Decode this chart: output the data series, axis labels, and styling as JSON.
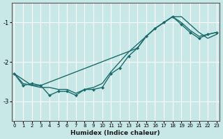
{
  "xlabel": "Humidex (Indice chaleur)",
  "ylabel": "",
  "background_color": "#c8e8e8",
  "grid_color": "#ffffff",
  "line_color": "#1a6b6b",
  "xlim": [
    0,
    23
  ],
  "ylim": [
    -3.5,
    -0.5
  ],
  "yticks": [
    -3,
    -2,
    -1
  ],
  "xticks": [
    0,
    1,
    2,
    3,
    4,
    5,
    6,
    7,
    8,
    9,
    10,
    11,
    12,
    13,
    14,
    15,
    16,
    17,
    18,
    19,
    20,
    21,
    22,
    23
  ],
  "line1_x": [
    0,
    1,
    2,
    3,
    4,
    5,
    6,
    7,
    8,
    9,
    10,
    11,
    12,
    13,
    14,
    15,
    16,
    17,
    18,
    19,
    20,
    21,
    22,
    23
  ],
  "line1_y": [
    -2.3,
    -2.6,
    -2.55,
    -2.6,
    -2.85,
    -2.75,
    -2.75,
    -2.85,
    -2.7,
    -2.7,
    -2.65,
    -2.3,
    -2.15,
    -1.85,
    -1.65,
    -1.35,
    -1.15,
    -1.0,
    -0.85,
    -1.05,
    -1.25,
    -1.4,
    -1.3,
    -1.25
  ],
  "line2_x": [
    0,
    1,
    2,
    3,
    4,
    5,
    6,
    7,
    8,
    9,
    10,
    11,
    12,
    13,
    14,
    15,
    16,
    17,
    18,
    19,
    20,
    21,
    22,
    23
  ],
  "line2_y": [
    -2.3,
    -2.55,
    -2.6,
    -2.65,
    -2.65,
    -2.7,
    -2.7,
    -2.8,
    -2.7,
    -2.65,
    -2.55,
    -2.25,
    -2.0,
    -1.75,
    -1.55,
    -1.35,
    -1.15,
    -1.0,
    -0.85,
    -1.0,
    -1.2,
    -1.35,
    -1.3,
    -1.25
  ],
  "line3_x": [
    0,
    2,
    3,
    14,
    15,
    16,
    17,
    18,
    19,
    20,
    21,
    22,
    23
  ],
  "line3_y": [
    -2.3,
    -2.6,
    -2.6,
    -1.65,
    -1.35,
    -1.15,
    -1.0,
    -0.85,
    -0.85,
    -1.05,
    -1.25,
    -1.4,
    -1.3
  ]
}
